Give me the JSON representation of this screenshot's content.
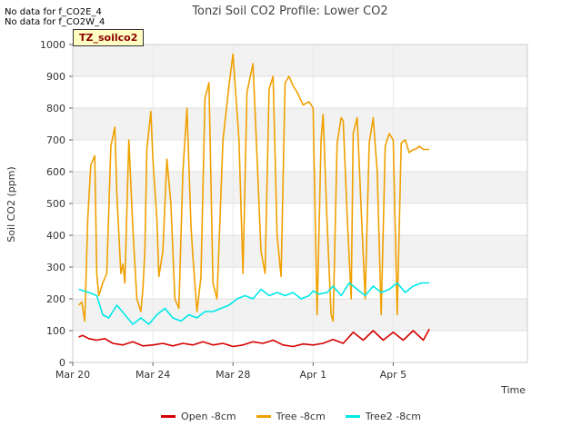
{
  "no_data_notes": [
    "No data for f_CO2E_4",
    "No data for f_CO2W_4"
  ],
  "site_tag": "TZ_soilco2",
  "chart_data": {
    "type": "line",
    "title": "Tonzi Soil CO2 Profile: Lower CO2",
    "xlabel": "Time",
    "ylabel": "Soil CO2 (ppm)",
    "ylim": [
      0,
      1000
    ],
    "yticks": [
      0,
      100,
      200,
      300,
      400,
      500,
      600,
      700,
      800,
      900,
      1000
    ],
    "xlim": [
      0,
      22.7
    ],
    "xticks": [
      {
        "value": 0,
        "label": "Mar 20"
      },
      {
        "value": 4,
        "label": "Mar 24"
      },
      {
        "value": 8,
        "label": "Mar 28"
      },
      {
        "value": 12,
        "label": "Apr 1"
      },
      {
        "value": 16,
        "label": "Apr 5"
      }
    ],
    "grid": true,
    "legend_position": "bottom",
    "series": [
      {
        "name": "Open -8cm",
        "color": "#d40000",
        "x": [
          0.3,
          0.5,
          0.8,
          1.2,
          1.6,
          2.0,
          2.5,
          3.0,
          3.5,
          4.0,
          4.5,
          5.0,
          5.5,
          6.0,
          6.5,
          7.0,
          7.5,
          8.0,
          8.5,
          9.0,
          9.5,
          10.0,
          10.5,
          11.0,
          11.5,
          12.0,
          12.5,
          13.0,
          13.5,
          14.0,
          14.5,
          15.0,
          15.5,
          16.0,
          16.5,
          17.0,
          17.5,
          17.8
        ],
        "y": [
          80,
          85,
          75,
          70,
          75,
          60,
          55,
          65,
          52,
          55,
          60,
          52,
          60,
          55,
          65,
          55,
          60,
          50,
          55,
          65,
          60,
          70,
          55,
          50,
          58,
          55,
          60,
          72,
          60,
          95,
          70,
          100,
          70,
          95,
          70,
          100,
          70,
          105
        ]
      },
      {
        "name": "Tree -8cm",
        "color": "#f0a000",
        "x": [
          0.3,
          0.45,
          0.6,
          0.75,
          0.9,
          1.1,
          1.2,
          1.3,
          1.5,
          1.7,
          1.9,
          2.1,
          2.2,
          2.4,
          2.5,
          2.6,
          2.8,
          3.0,
          3.2,
          3.4,
          3.5,
          3.6,
          3.7,
          3.9,
          4.0,
          4.2,
          4.3,
          4.5,
          4.7,
          4.9,
          5.1,
          5.3,
          5.5,
          5.7,
          5.9,
          6.0,
          6.2,
          6.4,
          6.6,
          6.8,
          7.0,
          7.2,
          7.5,
          7.8,
          8.0,
          8.3,
          8.5,
          8.7,
          9.0,
          9.2,
          9.4,
          9.6,
          9.8,
          10.0,
          10.2,
          10.4,
          10.6,
          10.8,
          11.0,
          11.2,
          11.5,
          11.8,
          12.0,
          12.2,
          12.4,
          12.5,
          12.7,
          12.9,
          13.0,
          13.2,
          13.4,
          13.5,
          13.7,
          13.9,
          14.0,
          14.2,
          14.4,
          14.6,
          14.8,
          15.0,
          15.2,
          15.4,
          15.6,
          15.8,
          16.0,
          16.2,
          16.4,
          16.6,
          16.8,
          17.0,
          17.1,
          17.3,
          17.5,
          17.7,
          17.8
        ],
        "y": [
          180,
          190,
          130,
          450,
          620,
          650,
          280,
          210,
          250,
          280,
          680,
          740,
          530,
          280,
          310,
          250,
          700,
          420,
          200,
          160,
          230,
          350,
          670,
          790,
          640,
          450,
          270,
          350,
          640,
          500,
          200,
          170,
          600,
          800,
          430,
          330,
          160,
          270,
          830,
          880,
          250,
          200,
          700,
          870,
          970,
          700,
          280,
          850,
          940,
          650,
          350,
          280,
          860,
          900,
          400,
          270,
          880,
          900,
          870,
          850,
          810,
          820,
          800,
          150,
          700,
          780,
          440,
          150,
          130,
          690,
          770,
          760,
          460,
          200,
          720,
          770,
          480,
          200,
          690,
          770,
          600,
          150,
          680,
          720,
          700,
          150,
          690,
          700,
          660,
          670,
          670,
          680,
          670,
          670,
          670
        ],
        "smooth": true
      },
      {
        "name": "Tree2 -8cm",
        "color": "#00e8e8",
        "x": [
          0.3,
          0.8,
          1.2,
          1.5,
          1.8,
          2.2,
          2.6,
          3.0,
          3.4,
          3.8,
          4.2,
          4.6,
          5.0,
          5.4,
          5.8,
          6.2,
          6.6,
          7.0,
          7.4,
          7.8,
          8.2,
          8.6,
          9.0,
          9.4,
          9.8,
          10.2,
          10.6,
          11.0,
          11.4,
          11.8,
          12.0,
          12.3,
          12.7,
          13.0,
          13.4,
          13.8,
          14.2,
          14.6,
          15.0,
          15.4,
          15.8,
          16.2,
          16.6,
          17.0,
          17.4,
          17.8
        ],
        "y": [
          230,
          220,
          210,
          150,
          140,
          180,
          150,
          120,
          140,
          120,
          150,
          170,
          140,
          130,
          150,
          140,
          160,
          160,
          170,
          180,
          200,
          210,
          200,
          230,
          210,
          220,
          210,
          220,
          200,
          210,
          225,
          215,
          220,
          240,
          210,
          250,
          230,
          210,
          240,
          220,
          230,
          250,
          220,
          240,
          250,
          250
        ]
      }
    ]
  }
}
